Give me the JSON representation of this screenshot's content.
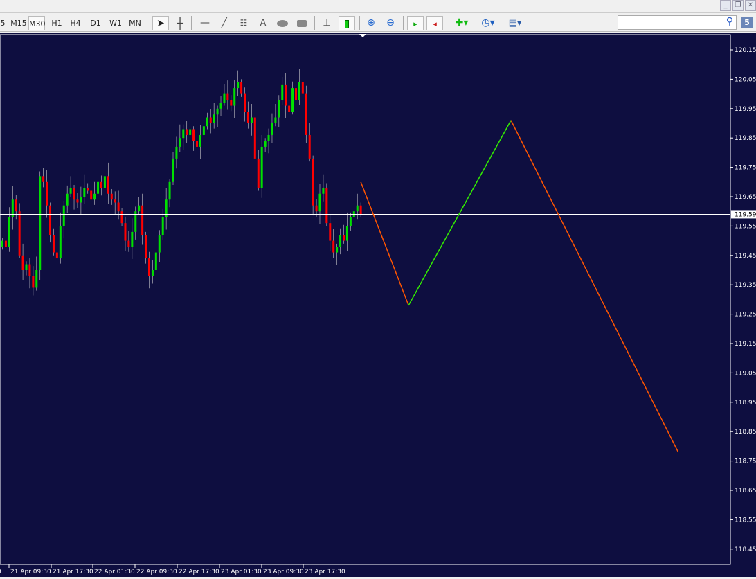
{
  "window": {
    "minimize": "_",
    "restore": "❐",
    "close": "✕"
  },
  "toolbar": {
    "timeframes": [
      {
        "label": "5",
        "selected": false
      },
      {
        "label": "M15",
        "selected": false
      },
      {
        "label": "M30",
        "selected": true
      },
      {
        "label": "H1",
        "selected": false
      },
      {
        "label": "H4",
        "selected": false
      },
      {
        "label": "D1",
        "selected": false
      },
      {
        "label": "W1",
        "selected": false
      },
      {
        "label": "MN",
        "selected": false
      }
    ],
    "tools": [
      "cursor-icon",
      "crosshair-icon",
      "horizontal-line-icon",
      "trendline-icon",
      "fibonacci-icon",
      "text-icon",
      "ellipse-icon",
      "rectangle-icon",
      "bar-chart-icon",
      "candlestick-icon",
      "zoom-in-icon",
      "zoom-out-icon",
      "chart-shift-icon",
      "autoscroll-icon",
      "indicators-icon",
      "periods-icon",
      "templates-icon"
    ],
    "text_tool": "A",
    "search_placeholder": "",
    "badge": "5"
  },
  "chart_data": {
    "type": "candlestick",
    "symbol_timeframe": "M30",
    "colors": {
      "background": "#0e0e40",
      "bull": "#00e000",
      "bear": "#ff0000",
      "wick": "#ffffff",
      "projection_down": "#ff5500",
      "projection_up": "#33ee00",
      "bid_line": "#ffffff"
    },
    "ylim": [
      118.41,
      120.2
    ],
    "y_ticks": [
      "120.15",
      "120.05",
      "119.95",
      "119.85",
      "119.75",
      "119.65",
      "119.55",
      "119.45",
      "119.35",
      "119.25",
      "119.15",
      "119.05",
      "118.95",
      "118.85",
      "118.75",
      "118.65",
      "118.55",
      "118.45"
    ],
    "current_price": "119.59",
    "x_ticks": [
      "0",
      "21 Apr 09:30",
      "21 Apr 17:30",
      "22 Apr 01:30",
      "22 Apr 09:30",
      "22 Apr 17:30",
      "23 Apr 01:30",
      "23 Apr 09:30",
      "23 Apr 17:30"
    ],
    "closes": [
      119.5,
      119.48,
      119.58,
      119.64,
      119.6,
      119.45,
      119.4,
      119.42,
      119.38,
      119.34,
      119.4,
      119.72,
      119.7,
      119.62,
      119.52,
      119.46,
      119.44,
      119.55,
      119.62,
      119.66,
      119.68,
      119.64,
      119.63,
      119.65,
      119.68,
      119.67,
      119.64,
      119.66,
      119.7,
      119.68,
      119.72,
      119.66,
      119.64,
      119.63,
      119.6,
      119.56,
      119.5,
      119.48,
      119.53,
      119.6,
      119.62,
      119.52,
      119.44,
      119.38,
      119.4,
      119.46,
      119.52,
      119.58,
      119.64,
      119.7,
      119.78,
      119.82,
      119.85,
      119.88,
      119.86,
      119.88,
      119.84,
      119.82,
      119.86,
      119.89,
      119.92,
      119.9,
      119.93,
      119.95,
      119.97,
      120.0,
      119.98,
      119.96,
      120.02,
      120.04,
      120.0,
      119.94,
      119.9,
      119.92,
      119.78,
      119.68,
      119.82,
      119.84,
      119.86,
      119.9,
      119.92,
      119.98,
      120.03,
      119.96,
      119.94,
      120.02,
      119.98,
      120.04,
      120.0,
      119.86,
      119.78,
      119.62,
      119.6,
      119.66,
      119.68,
      119.56,
      119.5,
      119.46,
      119.48,
      119.52,
      119.5,
      119.55,
      119.58,
      119.6,
      119.62,
      119.59
    ],
    "projection": [
      {
        "bar": 0,
        "price": 119.7
      },
      {
        "bar": 14,
        "price": 119.28
      },
      {
        "bar": 44,
        "price": 119.91
      },
      {
        "bar": 93,
        "price": 118.78
      }
    ]
  }
}
